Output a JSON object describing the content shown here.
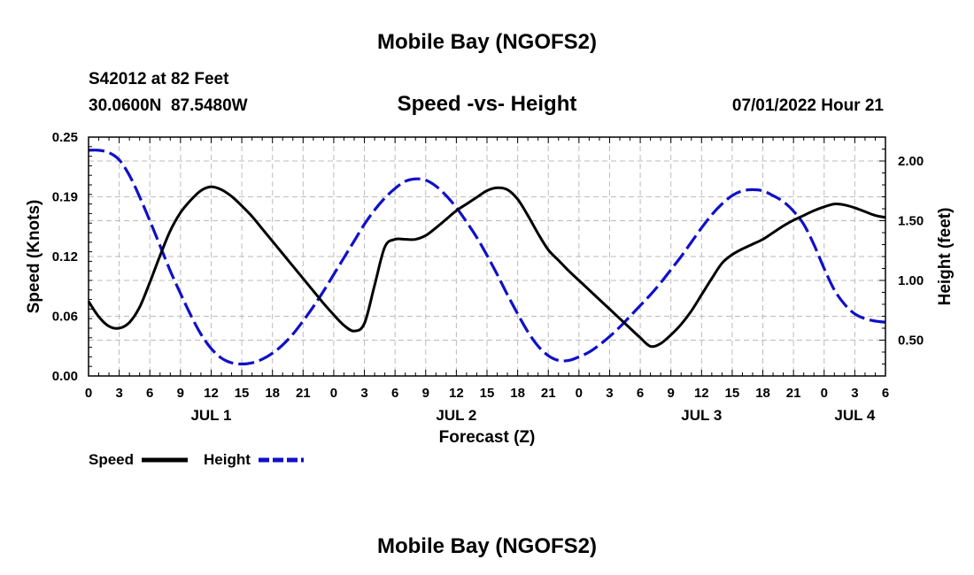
{
  "page_title": "Mobile Bay (NGOFS2)",
  "station": {
    "id_depth": "S42012 at 82 Feet",
    "coords": "30.0600N  87.5480W"
  },
  "plot_title": "Speed -vs- Height",
  "timestamp": "07/01/2022 Hour 21",
  "footer_title": "Mobile Bay (NGOFS2)",
  "colors": {
    "speed": "#000000",
    "height": "#1010c8",
    "grid": "#bbbbbb"
  },
  "chart_data": {
    "type": "line",
    "xlabel": "Forecast (Z)",
    "ylabel": "Speed (Knots)",
    "y2label": "Height (feet)",
    "x_hours_range": [
      0,
      78
    ],
    "ylim": [
      0,
      0.25
    ],
    "y2lim": [
      0.2,
      2.2
    ],
    "x_tick_labels": [
      "0",
      "3",
      "6",
      "9",
      "12",
      "15",
      "18",
      "21",
      "0",
      "3",
      "6",
      "9",
      "12",
      "15",
      "18",
      "21",
      "0",
      "3",
      "6",
      "9",
      "12",
      "15",
      "18",
      "21",
      "0",
      "3",
      "6"
    ],
    "y_ticks": [
      0,
      0.0625,
      0.125,
      0.1875,
      0.25
    ],
    "y_tick_labels": [
      "0.00",
      "0.06",
      "0.12",
      "0.19",
      "0.25"
    ],
    "y2_ticks": [
      0.5,
      1.0,
      1.5,
      2.0
    ],
    "y2_tick_labels": [
      "0.50",
      "1.00",
      "1.50",
      "2.00"
    ],
    "day_labels": [
      {
        "label": "JUL 1",
        "hour": 12
      },
      {
        "label": "JUL 2",
        "hour": 36
      },
      {
        "label": "JUL 3",
        "hour": 60
      },
      {
        "label": "JUL 4",
        "hour": 75
      }
    ],
    "legend": [
      "Speed",
      "Height"
    ],
    "series": [
      {
        "name": "Speed",
        "unit": "knots",
        "x": [
          0,
          1,
          2,
          3,
          4,
          5,
          6,
          7,
          8,
          9,
          10,
          11,
          12,
          13,
          14,
          15,
          16,
          17,
          18,
          19,
          20,
          21,
          22,
          23,
          24,
          25,
          26,
          27,
          28,
          29,
          30,
          31,
          32,
          33,
          34,
          35,
          36,
          37,
          38,
          39,
          40,
          41,
          42,
          43,
          44,
          45,
          46,
          47,
          48,
          49,
          50,
          51,
          52,
          53,
          54,
          55,
          56,
          57,
          58,
          59,
          60,
          61,
          62,
          63,
          64,
          65,
          66,
          67,
          68,
          69,
          70,
          71,
          72,
          73,
          74,
          75,
          76,
          77,
          78
        ],
        "values": [
          0.078,
          0.062,
          0.052,
          0.05,
          0.056,
          0.072,
          0.098,
          0.126,
          0.152,
          0.171,
          0.184,
          0.194,
          0.198,
          0.195,
          0.188,
          0.178,
          0.167,
          0.154,
          0.141,
          0.128,
          0.115,
          0.102,
          0.089,
          0.076,
          0.064,
          0.053,
          0.047,
          0.055,
          0.095,
          0.135,
          0.143,
          0.143,
          0.143,
          0.147,
          0.155,
          0.164,
          0.173,
          0.18,
          0.187,
          0.194,
          0.197,
          0.195,
          0.185,
          0.168,
          0.149,
          0.132,
          0.121,
          0.11,
          0.1,
          0.09,
          0.08,
          0.07,
          0.06,
          0.05,
          0.04,
          0.031,
          0.034,
          0.043,
          0.054,
          0.068,
          0.085,
          0.102,
          0.118,
          0.127,
          0.133,
          0.138,
          0.143,
          0.15,
          0.157,
          0.163,
          0.168,
          0.173,
          0.177,
          0.18,
          0.179,
          0.176,
          0.172,
          0.168,
          0.166
        ]
      },
      {
        "name": "Height",
        "unit": "feet",
        "x": [
          0,
          1,
          2,
          3,
          4,
          5,
          6,
          7,
          8,
          9,
          10,
          11,
          12,
          13,
          14,
          15,
          16,
          17,
          18,
          19,
          20,
          21,
          22,
          23,
          24,
          25,
          26,
          27,
          28,
          29,
          30,
          31,
          32,
          33,
          34,
          35,
          36,
          37,
          38,
          39,
          40,
          41,
          42,
          43,
          44,
          45,
          46,
          47,
          48,
          49,
          50,
          51,
          52,
          53,
          54,
          55,
          56,
          57,
          58,
          59,
          60,
          61,
          62,
          63,
          64,
          65,
          66,
          67,
          68,
          69,
          70,
          71,
          72,
          73,
          74,
          75,
          76,
          77,
          78
        ],
        "values": [
          2.09,
          2.09,
          2.07,
          2.01,
          1.88,
          1.7,
          1.5,
          1.29,
          1.08,
          0.89,
          0.71,
          0.55,
          0.43,
          0.35,
          0.31,
          0.3,
          0.31,
          0.34,
          0.39,
          0.46,
          0.55,
          0.66,
          0.78,
          0.91,
          1.05,
          1.19,
          1.33,
          1.47,
          1.59,
          1.69,
          1.77,
          1.83,
          1.85,
          1.84,
          1.79,
          1.71,
          1.61,
          1.49,
          1.36,
          1.21,
          1.05,
          0.88,
          0.72,
          0.57,
          0.45,
          0.37,
          0.33,
          0.33,
          0.36,
          0.4,
          0.46,
          0.53,
          0.61,
          0.7,
          0.79,
          0.88,
          0.98,
          1.09,
          1.2,
          1.32,
          1.44,
          1.55,
          1.64,
          1.71,
          1.75,
          1.76,
          1.75,
          1.71,
          1.66,
          1.58,
          1.47,
          1.3,
          1.1,
          0.92,
          0.8,
          0.72,
          0.68,
          0.66,
          0.65
        ]
      }
    ]
  }
}
